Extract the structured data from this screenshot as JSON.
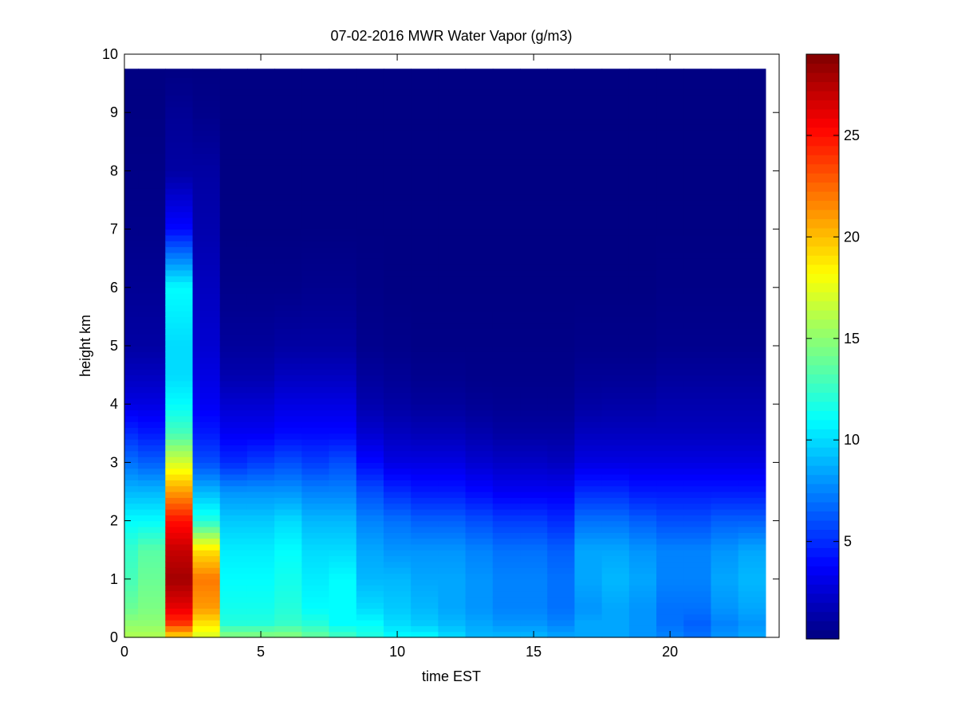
{
  "chart_data": {
    "type": "heatmap",
    "title": "07-02-2016 MWR Water Vapor (g/m3)",
    "xlabel": "time EST",
    "ylabel": "height km",
    "xlim": [
      0,
      24
    ],
    "ylim": [
      0,
      10
    ],
    "x_ticks": [
      0,
      5,
      10,
      15,
      20
    ],
    "y_ticks": [
      0,
      1,
      2,
      3,
      4,
      5,
      6,
      7,
      8,
      9,
      10
    ],
    "colorbar": {
      "colormap": "jet",
      "range": [
        0.2,
        29
      ],
      "ticks": [
        5,
        10,
        15,
        20,
        25
      ]
    },
    "grid": false,
    "cell_width_hours": 1,
    "cell_height_km": 0.1,
    "time_start": 0,
    "time_end": 23.5,
    "height_top": 9.75,
    "column_centers": [
      0,
      1,
      2,
      3,
      4,
      5,
      6,
      7,
      8,
      9,
      10,
      11,
      12,
      13,
      14,
      15,
      16,
      17,
      18,
      19,
      20,
      21,
      22,
      23
    ],
    "profile_heights": [
      0,
      0.25,
      0.5,
      1,
      1.5,
      2,
      2.5,
      3,
      3.5,
      4,
      4.5,
      5,
      6,
      7,
      8,
      9,
      9.75
    ],
    "profiles": [
      [
        16,
        15,
        14,
        13,
        12.5,
        11,
        9,
        7,
        5,
        3,
        2,
        1.2,
        0.8,
        0.5,
        0.4,
        0.3,
        0.3
      ],
      [
        16,
        15,
        14.5,
        14,
        13.5,
        11,
        9,
        6.5,
        4.5,
        3,
        2,
        1.2,
        0.8,
        0.5,
        0.4,
        0.3,
        0.3
      ],
      [
        19,
        24,
        26,
        28,
        27,
        25,
        21,
        17,
        13,
        11,
        10,
        10,
        11,
        4,
        1.2,
        0.8,
        0.3
      ],
      [
        17,
        19,
        21,
        22,
        19,
        12,
        9,
        6,
        4.5,
        3.5,
        3,
        2.5,
        2,
        1.5,
        1.2,
        0.5,
        0.3
      ],
      [
        15,
        12,
        11.5,
        11,
        10.5,
        9.5,
        8,
        5,
        3.5,
        2.5,
        1.5,
        1,
        0.5,
        0.3,
        0.3,
        0.3,
        0.3
      ],
      [
        15,
        12,
        11.5,
        11,
        10.5,
        9.5,
        8,
        5.5,
        3.5,
        2.5,
        1.5,
        1,
        0.5,
        0.3,
        0.3,
        0.3,
        0.3
      ],
      [
        15,
        12.5,
        12,
        11.5,
        11,
        10,
        8,
        6,
        4,
        3,
        2,
        1.2,
        0.5,
        0.3,
        0.3,
        0.3,
        0.3
      ],
      [
        14,
        12,
        11,
        10.5,
        10,
        9,
        7.5,
        5.5,
        4,
        3,
        2,
        1.2,
        0.6,
        0.3,
        0.3,
        0.3,
        0.3
      ],
      [
        13,
        11,
        11,
        11,
        10,
        9,
        7.5,
        6,
        4,
        3,
        2,
        1.2,
        0.6,
        0.3,
        0.3,
        0.3,
        0.3
      ],
      [
        12,
        11,
        10,
        9,
        8.5,
        7.5,
        6,
        4,
        2.5,
        1.5,
        1,
        0.6,
        0.4,
        0.3,
        0.3,
        0.3,
        0.3
      ],
      [
        11,
        10,
        9.5,
        9,
        8,
        7,
        5,
        3,
        2,
        1.2,
        0.8,
        0.5,
        0.3,
        0.3,
        0.3,
        0.3,
        0.3
      ],
      [
        11,
        9.5,
        9,
        8.5,
        8,
        6.5,
        4.5,
        3,
        1.8,
        1,
        0.6,
        0.4,
        0.3,
        0.3,
        0.3,
        0.3,
        0.3
      ],
      [
        10,
        9,
        8.5,
        8.5,
        8,
        6.5,
        4.5,
        3,
        1.8,
        1,
        0.6,
        0.4,
        0.3,
        0.3,
        0.3,
        0.3,
        0.3
      ],
      [
        9,
        8.5,
        8,
        8,
        7.5,
        6,
        4,
        2.5,
        1.5,
        0.8,
        0.5,
        0.4,
        0.3,
        0.3,
        0.3,
        0.3,
        0.3
      ],
      [
        9,
        8,
        7.5,
        7.5,
        7,
        5.5,
        3.5,
        2.2,
        1.2,
        0.7,
        0.5,
        0.4,
        0.3,
        0.3,
        0.3,
        0.3,
        0.3
      ],
      [
        9,
        8,
        7.5,
        7.5,
        7,
        5.5,
        3.5,
        2.2,
        1.2,
        0.7,
        0.5,
        0.4,
        0.3,
        0.3,
        0.3,
        0.3,
        0.3
      ],
      [
        8.5,
        7.5,
        7,
        7,
        6.5,
        5,
        3.5,
        2,
        1.2,
        0.7,
        0.5,
        0.4,
        0.3,
        0.3,
        0.3,
        0.3,
        0.3
      ],
      [
        8.5,
        8.5,
        8,
        8.5,
        8.5,
        7,
        5,
        3,
        2,
        1.2,
        0.8,
        0.5,
        0.3,
        0.3,
        0.3,
        0.3,
        0.3
      ],
      [
        8.5,
        8.5,
        8.5,
        9,
        8.5,
        7,
        5,
        3,
        2,
        1.3,
        0.8,
        0.5,
        0.3,
        0.3,
        0.3,
        0.3,
        0.3
      ],
      [
        8,
        8,
        8,
        8.5,
        8,
        6.5,
        4.5,
        3,
        2,
        1.3,
        0.8,
        0.5,
        0.3,
        0.3,
        0.3,
        0.3,
        0.3
      ],
      [
        7.5,
        7,
        7,
        7.5,
        7.5,
        6,
        4.5,
        3,
        2,
        1.5,
        1,
        0.6,
        0.4,
        0.3,
        0.3,
        0.3,
        0.3
      ],
      [
        7,
        6.5,
        7,
        7.5,
        7.5,
        6,
        4.5,
        3,
        2,
        1.5,
        1,
        0.6,
        0.4,
        0.3,
        0.3,
        0.3,
        0.3
      ],
      [
        8,
        7.5,
        8,
        8.5,
        8,
        6.5,
        4.5,
        3,
        2,
        1.5,
        1,
        0.6,
        0.4,
        0.3,
        0.3,
        0.3,
        0.3
      ],
      [
        8.5,
        8,
        8.5,
        9,
        8.5,
        6.5,
        4.5,
        3,
        2,
        1.5,
        1,
        0.6,
        0.4,
        0.3,
        0.3,
        0.3,
        0.3
      ]
    ]
  }
}
